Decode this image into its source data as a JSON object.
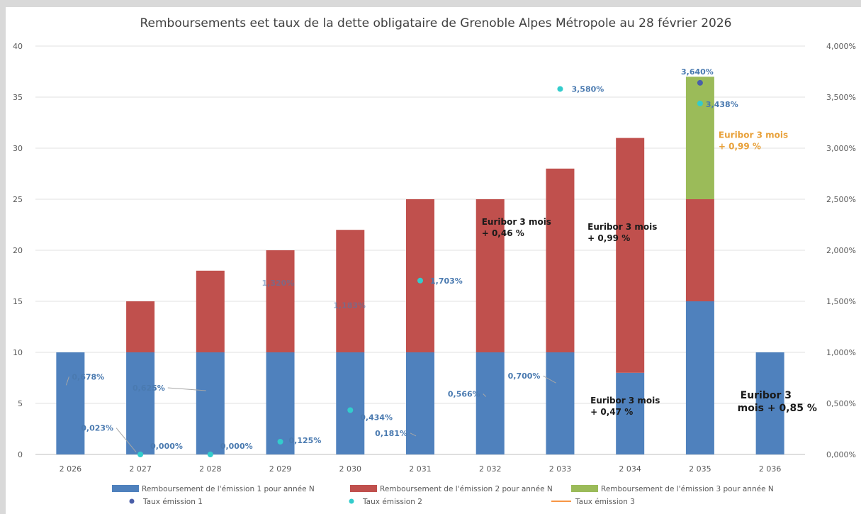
{
  "chart_data": {
    "type": "bar",
    "title": "Remboursements eet taux de la dette obligataire de Grenoble Alpes Métropole au 28 février 2026",
    "categories": [
      "2 026",
      "2 027",
      "2 028",
      "2 029",
      "2 030",
      "2 031",
      "2 032",
      "2 033",
      "2 034",
      "2 035",
      "2 036"
    ],
    "stacked": true,
    "ylim": [
      0,
      40
    ],
    "y_ticks": [
      "0",
      "5",
      "10",
      "15",
      "20",
      "25",
      "30",
      "35",
      "40"
    ],
    "y2lim": [
      0,
      4
    ],
    "y2_ticks": [
      "0,000%",
      "0,500%",
      "1,000%",
      "1,500%",
      "2,000%",
      "2,500%",
      "3,000%",
      "3,500%",
      "4,000%"
    ],
    "grid": true,
    "legend_position": "bottom",
    "series": [
      {
        "name": "Remboursement de l'émission 1 pour année N",
        "type": "bar",
        "color": "#4f81bd",
        "values": [
          10,
          10,
          10,
          10,
          10,
          10,
          10,
          10,
          8,
          15,
          10
        ]
      },
      {
        "name": "Remboursement de l'émission 2 pour année N",
        "type": "bar",
        "color": "#c0504d",
        "values": [
          0,
          5,
          8,
          10,
          12,
          15,
          15,
          18,
          23,
          10,
          0
        ]
      },
      {
        "name": "Remboursement de l'émission 3 pour année N",
        "type": "bar",
        "color": "#9bbb59",
        "values": [
          0,
          0,
          0,
          0,
          0,
          0,
          0,
          0,
          0,
          12,
          0
        ]
      },
      {
        "name": "Taux émission 1",
        "type": "scatter",
        "color": "#4a5fa8",
        "points": [
          {
            "x": "2 035",
            "y": 3.64,
            "label": "3,640%"
          }
        ]
      },
      {
        "name": "Taux émission 2",
        "type": "scatter",
        "color": "#33cccc",
        "points": [
          {
            "x": "2 027",
            "y": 0.0,
            "label": "0,000%"
          },
          {
            "x": "2 028",
            "y": 0.0,
            "label": "0,000%"
          },
          {
            "x": "2 029",
            "y": 0.125,
            "label": "0,125%"
          },
          {
            "x": "2 030",
            "y": 0.434,
            "label": "0,434%"
          },
          {
            "x": "2 031",
            "y": 1.703,
            "label": "1,703%"
          },
          {
            "x": "2 033",
            "y": 3.58,
            "label": "3,580%"
          },
          {
            "x": "2 035",
            "y": 3.438,
            "label": "3,438%"
          }
        ]
      },
      {
        "name": "Taux émission 3",
        "type": "line",
        "color": "#f79646",
        "points": []
      }
    ],
    "rate_labels": [
      {
        "x": "2 026",
        "y": 0.678,
        "label": "0,678%"
      },
      {
        "x": "2 027",
        "y": 0.023,
        "label": "0,023%"
      },
      {
        "x": "2 028",
        "y": 0.625,
        "label": "0,625%"
      },
      {
        "x": "2 029",
        "y": 1.32,
        "label": "1,320%"
      },
      {
        "x": "2 030",
        "y": 1.183,
        "label": "1,183%"
      },
      {
        "x": "2 031",
        "y": 0.181,
        "label": "0,181%"
      },
      {
        "x": "2 032",
        "y": 0.566,
        "label": "0,566%"
      },
      {
        "x": "2 033",
        "y": 0.7,
        "label": "0,700%"
      }
    ],
    "annotations": [
      {
        "lines": [
          "Euribor 3 mois",
          "+ 0,46 %"
        ],
        "x": "2 032",
        "y": 22.5,
        "style": "dark"
      },
      {
        "lines": [
          "Euribor 3 mois",
          "+ 0,99 %"
        ],
        "x": "2 034",
        "y": 22,
        "style": "dark"
      },
      {
        "lines": [
          "Euribor 3 mois",
          "+ 0,47 %"
        ],
        "x": "2 034",
        "y": 5,
        "style": "dark"
      },
      {
        "lines": [
          "Euribor 3 mois",
          "+ 0,99 %"
        ],
        "x": "2 035",
        "y": 31,
        "style": "orange"
      },
      {
        "lines": [
          "Euribor 3",
          "mois + 0,85 %"
        ],
        "x": "2 036",
        "y": 5.5,
        "style": "big"
      }
    ]
  }
}
